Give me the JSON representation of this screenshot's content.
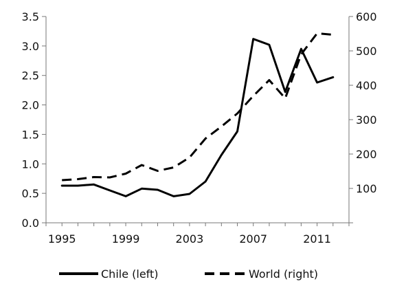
{
  "chart_data": {
    "type": "line",
    "x": [
      1995,
      1996,
      1997,
      1998,
      1999,
      2000,
      2001,
      2002,
      2003,
      2004,
      2005,
      2006,
      2007,
      2008,
      2009,
      2010,
      2011,
      2012
    ],
    "x_ticks": [
      "1995",
      "1999",
      "2003",
      "2007",
      "2011"
    ],
    "x_tick_values": [
      1995,
      1999,
      2003,
      2007,
      2011
    ],
    "xlim": [
      1994,
      2013
    ],
    "left_axis": {
      "ylim": [
        0,
        3.5
      ],
      "ticks": [
        "0.0",
        "0.5",
        "1.0",
        "1.5",
        "2.0",
        "2.5",
        "3.0",
        "3.5"
      ],
      "tick_values": [
        0,
        0.5,
        1.0,
        1.5,
        2.0,
        2.5,
        3.0,
        3.5
      ]
    },
    "right_axis": {
      "ylim": [
        0,
        600
      ],
      "ticks": [
        "100",
        "200",
        "300",
        "400",
        "500",
        "600"
      ],
      "tick_values": [
        100,
        200,
        300,
        400,
        500,
        600
      ]
    },
    "series": [
      {
        "name": "Chile (left)",
        "axis": "left",
        "style": "solid",
        "color": "#000000",
        "values": [
          0.63,
          0.63,
          0.65,
          0.55,
          0.45,
          0.58,
          0.56,
          0.45,
          0.49,
          0.7,
          1.15,
          1.55,
          3.12,
          3.02,
          2.22,
          2.95,
          2.38,
          2.47
        ]
      },
      {
        "name": "World (right)",
        "axis": "right",
        "style": "dashed",
        "color": "#000000",
        "values": [
          124,
          127,
          133,
          132,
          143,
          168,
          151,
          161,
          190,
          245,
          280,
          318,
          369,
          415,
          362,
          490,
          551,
          547
        ]
      }
    ],
    "title": "",
    "xlabel": "",
    "ylabel": "",
    "legend_position": "bottom",
    "grid": false
  },
  "legend": {
    "items": [
      {
        "label": "Chile (left)",
        "style": "solid"
      },
      {
        "label": "World (right)",
        "style": "dashed"
      }
    ]
  }
}
